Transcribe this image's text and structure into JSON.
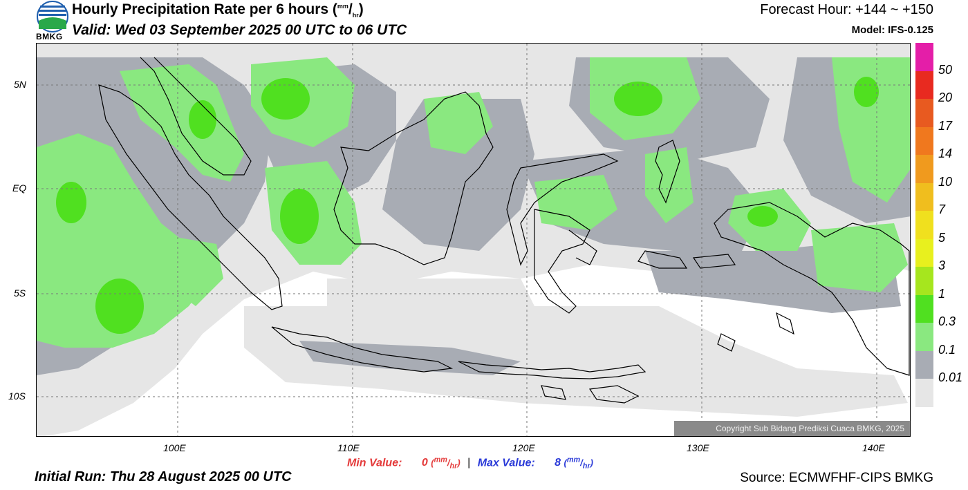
{
  "header": {
    "title": "Hourly Precipitation Rate per 6 hours",
    "title_unit_top": "mm",
    "title_unit_bottom": "hr",
    "valid": "Valid: Wed 03 September 2025 00 UTC to 06 UTC",
    "forecast_hour": "Forecast Hour: +144 ~ +150",
    "model": "Model: IFS-0.125",
    "logo_text": "BMKG"
  },
  "map": {
    "copyright": "Copyright Sub Bidang Prediksi Cuaca BMKG, 2025",
    "lat_labels": [
      "5N",
      "EQ",
      "5S",
      "10S"
    ],
    "lon_labels": [
      "100E",
      "110E",
      "120E",
      "130E",
      "140E"
    ]
  },
  "legend": {
    "levels": [
      "50",
      "20",
      "17",
      "14",
      "10",
      "7",
      "5",
      "3",
      "1",
      "0.3",
      "0.1",
      "0.01"
    ],
    "colors": [
      "#e41ea8",
      "#e82a20",
      "#e85a20",
      "#f0781e",
      "#f09a1e",
      "#f0be1e",
      "#f0e01e",
      "#e8f01e",
      "#a6e61e",
      "#50e020",
      "#8ae880",
      "#a8acb4",
      "#e6e6e6"
    ]
  },
  "stats": {
    "min_label": "Min Value:",
    "min_value": "0",
    "max_label": "Max Value:",
    "max_value": "8",
    "unit_top": "mm",
    "unit_bottom": "hr"
  },
  "footer": {
    "initial_run": "Initial Run: Thu 28 August 2025 00 UTC",
    "source": "Source: ECMWFHF-CIPS BMKG"
  },
  "colors": {
    "light_rain": "#e6e6e6",
    "gray_rain": "#a8acb4",
    "light_green": "#8ae880",
    "green": "#50e020"
  }
}
